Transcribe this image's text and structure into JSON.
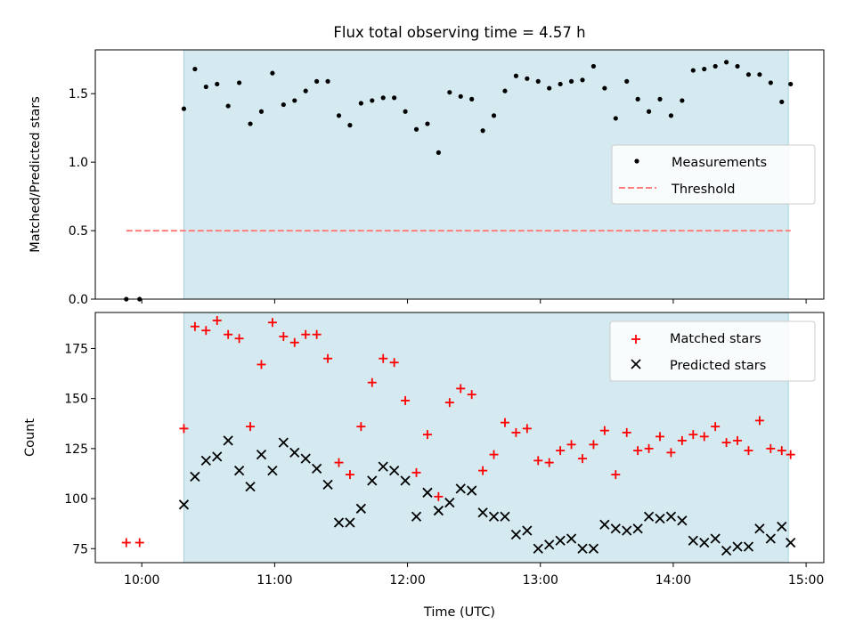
{
  "title": "Flux total observing time = 4.57 h",
  "colors": {
    "shade": "#d4eaf0",
    "shade_edge": "#a9d3df",
    "measurement": "#000000",
    "threshold": "#ff7f7f",
    "matched": "#ff0000",
    "predicted": "#000000"
  },
  "chart_data": [
    {
      "type": "scatter",
      "panel": "top",
      "title": "Flux total observing time = 4.57 h",
      "xlabel": "",
      "ylabel": "Matched/Predicted stars",
      "xlim": [
        "09:39",
        "15:08"
      ],
      "ylim": [
        0,
        1.82
      ],
      "yticks": [
        0.0,
        0.5,
        1.0,
        1.5
      ],
      "ytick_labels": [
        "0.0",
        "0.5",
        "1.0",
        "1.5"
      ],
      "grid": false,
      "legend_position": "center-right",
      "shaded_interval": [
        "10:19",
        "14:52"
      ],
      "legend": [
        "Measurements",
        "Threshold"
      ],
      "series": [
        {
          "name": "Measurements",
          "marker": "dot",
          "x": [
            "09:53",
            "09:59",
            "10:19",
            "10:24",
            "10:29",
            "10:34",
            "10:39",
            "10:44",
            "10:49",
            "10:54",
            "10:59",
            "11:04",
            "11:09",
            "11:14",
            "11:19",
            "11:24",
            "11:29",
            "11:34",
            "11:39",
            "11:44",
            "11:49",
            "11:54",
            "11:59",
            "12:04",
            "12:09",
            "12:14",
            "12:19",
            "12:24",
            "12:29",
            "12:34",
            "12:39",
            "12:44",
            "12:49",
            "12:54",
            "12:59",
            "13:04",
            "13:09",
            "13:14",
            "13:19",
            "13:24",
            "13:29",
            "13:34",
            "13:39",
            "13:44",
            "13:49",
            "13:54",
            "13:59",
            "14:04",
            "14:09",
            "14:14",
            "14:19",
            "14:24",
            "14:29",
            "14:34",
            "14:39",
            "14:44",
            "14:49",
            "14:53"
          ],
          "y": [
            0.0,
            0.0,
            1.39,
            1.68,
            1.55,
            1.57,
            1.41,
            1.58,
            1.28,
            1.37,
            1.65,
            1.42,
            1.45,
            1.52,
            1.59,
            1.59,
            1.34,
            1.27,
            1.43,
            1.45,
            1.47,
            1.47,
            1.37,
            1.24,
            1.28,
            1.07,
            1.51,
            1.48,
            1.46,
            1.23,
            1.34,
            1.52,
            1.63,
            1.61,
            1.59,
            1.54,
            1.57,
            1.59,
            1.6,
            1.7,
            1.54,
            1.32,
            1.59,
            1.46,
            1.37,
            1.46,
            1.34,
            1.45,
            1.67,
            1.68,
            1.7,
            1.73,
            1.7,
            1.64,
            1.64,
            1.58,
            1.44,
            1.57
          ]
        },
        {
          "name": "Threshold",
          "style": "dashed",
          "x": [
            "09:53",
            "14:53"
          ],
          "y": [
            0.5,
            0.5
          ]
        }
      ]
    },
    {
      "type": "scatter",
      "panel": "bottom",
      "xlabel": "Time (UTC)",
      "ylabel": "Count",
      "xlim": [
        "09:39",
        "15:08"
      ],
      "ylim": [
        68,
        193
      ],
      "yticks": [
        75,
        100,
        125,
        150,
        175
      ],
      "xticks": [
        "10:00",
        "11:00",
        "12:00",
        "13:00",
        "14:00",
        "15:00"
      ],
      "grid": false,
      "legend_position": "upper-right",
      "shaded_interval": [
        "10:19",
        "14:52"
      ],
      "legend": [
        "Matched stars",
        "Predicted stars"
      ],
      "series": [
        {
          "name": "Matched stars",
          "marker": "plus",
          "x": [
            "09:53",
            "09:59",
            "10:19",
            "10:24",
            "10:29",
            "10:34",
            "10:39",
            "10:44",
            "10:49",
            "10:54",
            "10:59",
            "11:04",
            "11:09",
            "11:14",
            "11:19",
            "11:24",
            "11:29",
            "11:34",
            "11:39",
            "11:44",
            "11:49",
            "11:54",
            "11:59",
            "12:04",
            "12:09",
            "12:14",
            "12:19",
            "12:24",
            "12:29",
            "12:34",
            "12:39",
            "12:44",
            "12:49",
            "12:54",
            "12:59",
            "13:04",
            "13:09",
            "13:14",
            "13:19",
            "13:24",
            "13:29",
            "13:34",
            "13:39",
            "13:44",
            "13:49",
            "13:54",
            "13:59",
            "14:04",
            "14:09",
            "14:14",
            "14:19",
            "14:24",
            "14:29",
            "14:34",
            "14:39",
            "14:44",
            "14:49",
            "14:53"
          ],
          "y": [
            78,
            78,
            135,
            186,
            184,
            189,
            182,
            180,
            136,
            167,
            188,
            181,
            178,
            182,
            182,
            170,
            118,
            112,
            136,
            158,
            170,
            168,
            149,
            113,
            132,
            101,
            148,
            155,
            152,
            114,
            122,
            138,
            133,
            135,
            119,
            118,
            124,
            127,
            120,
            127,
            134,
            112,
            133,
            124,
            125,
            131,
            123,
            129,
            132,
            131,
            136,
            128,
            129,
            124,
            139,
            125,
            124,
            122
          ]
        },
        {
          "name": "Predicted stars",
          "marker": "x",
          "x": [
            "10:19",
            "10:24",
            "10:29",
            "10:34",
            "10:39",
            "10:44",
            "10:49",
            "10:54",
            "10:59",
            "11:04",
            "11:09",
            "11:14",
            "11:19",
            "11:24",
            "11:29",
            "11:34",
            "11:39",
            "11:44",
            "11:49",
            "11:54",
            "11:59",
            "12:04",
            "12:09",
            "12:14",
            "12:19",
            "12:24",
            "12:29",
            "12:34",
            "12:39",
            "12:44",
            "12:49",
            "12:54",
            "12:59",
            "13:04",
            "13:09",
            "13:14",
            "13:19",
            "13:24",
            "13:29",
            "13:34",
            "13:39",
            "13:44",
            "13:49",
            "13:54",
            "13:59",
            "14:04",
            "14:09",
            "14:14",
            "14:19",
            "14:24",
            "14:29",
            "14:34",
            "14:39",
            "14:44",
            "14:49",
            "14:53"
          ],
          "y": [
            97,
            111,
            119,
            121,
            129,
            114,
            106,
            122,
            114,
            128,
            123,
            120,
            115,
            107,
            88,
            88,
            95,
            109,
            116,
            114,
            109,
            91,
            103,
            94,
            98,
            105,
            104,
            93,
            91,
            91,
            82,
            84,
            75,
            77,
            79,
            80,
            75,
            75,
            87,
            85,
            84,
            85,
            91,
            90,
            91,
            89,
            79,
            78,
            80,
            74,
            76,
            76,
            85,
            80,
            86,
            78
          ]
        }
      ]
    }
  ]
}
